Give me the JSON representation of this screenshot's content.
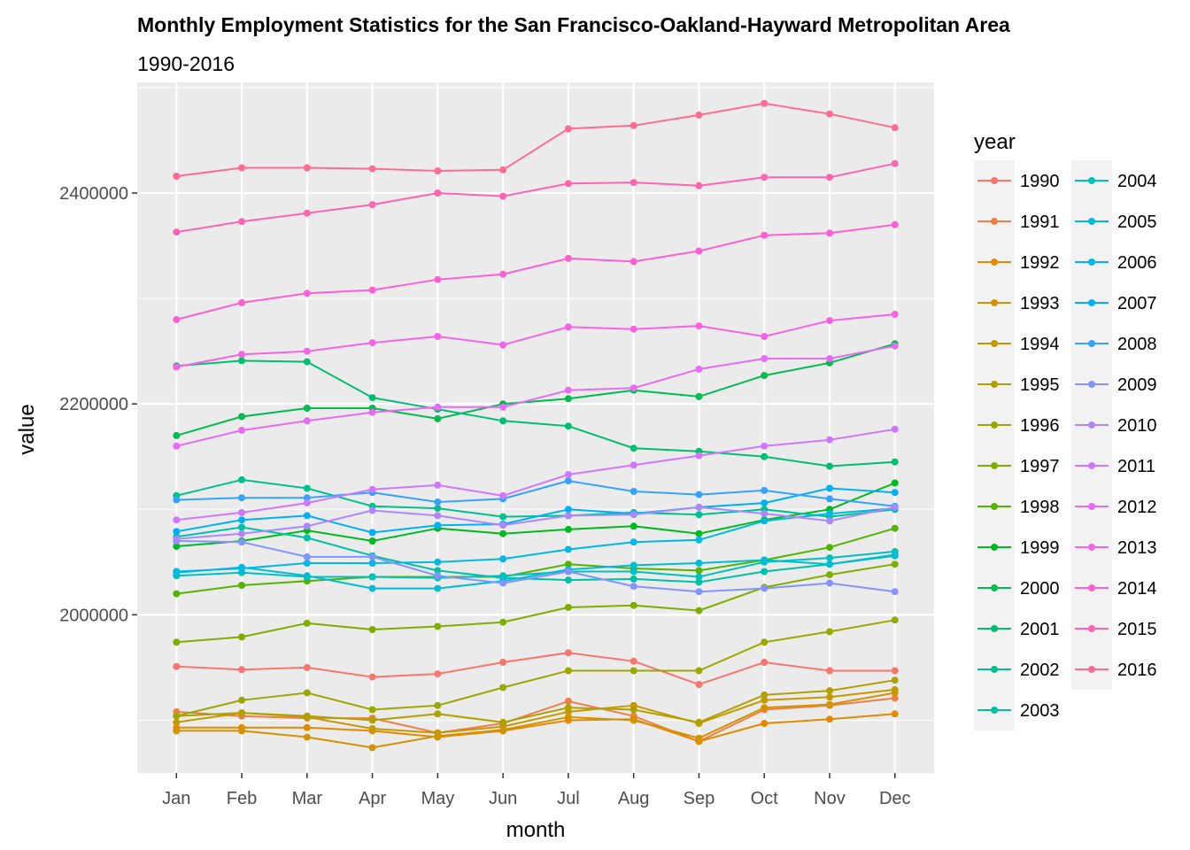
{
  "chart_data": {
    "type": "line",
    "title": "Monthly Employment Statistics for the San Francisco-Oakland-Hayward Metropolitan Area",
    "subtitle": "1990-2016",
    "xlabel": "month",
    "ylabel": "value",
    "legend_title": "year",
    "legend_position": "right",
    "grid": true,
    "categories": [
      "Jan",
      "Feb",
      "Mar",
      "Apr",
      "May",
      "Jun",
      "Jul",
      "Aug",
      "Sep",
      "Oct",
      "Nov",
      "Dec"
    ],
    "ylim": [
      1850000,
      2505000
    ],
    "yticks": [
      2000000,
      2200000,
      2400000
    ],
    "ytick_labels": [
      "2000000",
      "2200000",
      "2400000"
    ],
    "series": [
      {
        "name": "1990",
        "color": "#F8766D",
        "values": [
          1951000,
          1948000,
          1950000,
          1941000,
          1944000,
          1955000,
          1964000,
          1956000,
          1934000,
          1955000,
          1947000,
          1947000
        ]
      },
      {
        "name": "1991",
        "color": "#EF7F49",
        "values": [
          1908000,
          1904000,
          1902000,
          1902000,
          1888000,
          1897000,
          1918000,
          1904000,
          1880000,
          1910000,
          1914000,
          1921000
        ]
      },
      {
        "name": "1992",
        "color": "#E38900",
        "values": [
          1893000,
          1893000,
          1893000,
          1890000,
          1884000,
          1890000,
          1900000,
          1901000,
          1880000,
          1897000,
          1901000,
          1906000
        ]
      },
      {
        "name": "1993",
        "color": "#D39200",
        "values": [
          1890000,
          1890000,
          1884000,
          1874000,
          1885000,
          1891000,
          1903000,
          1900000,
          1883000,
          1912000,
          1915000,
          1926000
        ]
      },
      {
        "name": "1994",
        "color": "#C49A00",
        "values": [
          1898000,
          1907000,
          1903000,
          1892000,
          1888000,
          1894000,
          1908000,
          1914000,
          1897000,
          1919000,
          1922000,
          1929000
        ]
      },
      {
        "name": "1995",
        "color": "#B0A100",
        "values": [
          1904000,
          1907000,
          1904000,
          1900000,
          1906000,
          1898000,
          1912000,
          1910000,
          1898000,
          1924000,
          1928000,
          1938000
        ]
      },
      {
        "name": "1996",
        "color": "#9AA800",
        "values": [
          1904000,
          1919000,
          1926000,
          1910000,
          1914000,
          1931000,
          1947000,
          1947000,
          1947000,
          1974000,
          1984000,
          1995000
        ]
      },
      {
        "name": "1997",
        "color": "#7DAE00",
        "values": [
          1974000,
          1979000,
          1992000,
          1986000,
          1989000,
          1993000,
          2007000,
          2009000,
          2004000,
          2026000,
          2038000,
          2048000
        ]
      },
      {
        "name": "1998",
        "color": "#53B400",
        "values": [
          2020000,
          2028000,
          2032000,
          2036000,
          2036000,
          2036000,
          2048000,
          2044000,
          2042000,
          2052000,
          2064000,
          2082000
        ]
      },
      {
        "name": "1999",
        "color": "#00B81F",
        "values": [
          2065000,
          2070000,
          2080000,
          2070000,
          2082000,
          2077000,
          2081000,
          2084000,
          2077000,
          2090000,
          2100000,
          2125000
        ]
      },
      {
        "name": "2000",
        "color": "#00BB4E",
        "values": [
          2170000,
          2188000,
          2196000,
          2196000,
          2186000,
          2200000,
          2205000,
          2213000,
          2207000,
          2227000,
          2239000,
          2257000
        ]
      },
      {
        "name": "2001",
        "color": "#00BE70",
        "values": [
          2236000,
          2241000,
          2240000,
          2206000,
          2195000,
          2184000,
          2179000,
          2158000,
          2155000,
          2150000,
          2141000,
          2145000
        ]
      },
      {
        "name": "2002",
        "color": "#00C08D",
        "values": [
          2113000,
          2128000,
          2120000,
          2103000,
          2101000,
          2093000,
          2094000,
          2097000,
          2095000,
          2100000,
          2093000,
          2100000
        ]
      },
      {
        "name": "2003",
        "color": "#00C1A7",
        "values": [
          2074000,
          2083000,
          2073000,
          2056000,
          2042000,
          2035000,
          2033000,
          2034000,
          2031000,
          2041000,
          2048000,
          2056000
        ]
      },
      {
        "name": "2004",
        "color": "#00C0BE",
        "values": [
          2037000,
          2040000,
          2036000,
          2036000,
          2035000,
          2037000,
          2041000,
          2041000,
          2036000,
          2050000,
          2054000,
          2060000
        ]
      },
      {
        "name": "2005",
        "color": "#00BDD3",
        "values": [
          2040000,
          2045000,
          2037000,
          2025000,
          2025000,
          2032000,
          2043000,
          2047000,
          2049000,
          2052000,
          2048000,
          2057000
        ]
      },
      {
        "name": "2006",
        "color": "#00B8E5",
        "values": [
          2041000,
          2044000,
          2049000,
          2049000,
          2050000,
          2053000,
          2062000,
          2069000,
          2071000,
          2089000,
          2096000,
          2101000
        ]
      },
      {
        "name": "2007",
        "color": "#00B0F6",
        "values": [
          2079000,
          2090000,
          2094000,
          2078000,
          2085000,
          2086000,
          2100000,
          2096000,
          2102000,
          2106000,
          2120000,
          2116000
        ]
      },
      {
        "name": "2008",
        "color": "#35A2FF",
        "values": [
          2109000,
          2111000,
          2111000,
          2116000,
          2107000,
          2110000,
          2127000,
          2117000,
          2114000,
          2118000,
          2110000,
          2103000
        ]
      },
      {
        "name": "2009",
        "color": "#8494FF",
        "values": [
          2070000,
          2069000,
          2055000,
          2055000,
          2037000,
          2030000,
          2041000,
          2027000,
          2022000,
          2025000,
          2030000,
          2022000
        ]
      },
      {
        "name": "2010",
        "color": "#AE87FF",
        "values": [
          2072000,
          2077000,
          2084000,
          2099000,
          2094000,
          2085000,
          2094000,
          2095000,
          2102000,
          2096000,
          2089000,
          2102000
        ]
      },
      {
        "name": "2011",
        "color": "#CF78FF",
        "values": [
          2090000,
          2097000,
          2106000,
          2119000,
          2123000,
          2113000,
          2133000,
          2142000,
          2151000,
          2160000,
          2166000,
          2176000
        ]
      },
      {
        "name": "2012",
        "color": "#E76BF3",
        "values": [
          2160000,
          2175000,
          2184000,
          2192000,
          2197000,
          2197000,
          2213000,
          2215000,
          2233000,
          2243000,
          2243000,
          2255000
        ]
      },
      {
        "name": "2013",
        "color": "#F663E3",
        "values": [
          2235000,
          2247000,
          2250000,
          2258000,
          2264000,
          2256000,
          2273000,
          2271000,
          2274000,
          2264000,
          2279000,
          2285000
        ]
      },
      {
        "name": "2014",
        "color": "#FD61D1",
        "values": [
          2280000,
          2296000,
          2305000,
          2308000,
          2318000,
          2323000,
          2338000,
          2335000,
          2345000,
          2360000,
          2362000,
          2370000
        ]
      },
      {
        "name": "2015",
        "color": "#FF64B0",
        "values": [
          2363000,
          2373000,
          2381000,
          2389000,
          2400000,
          2397000,
          2409000,
          2410000,
          2407000,
          2415000,
          2415000,
          2428000
        ]
      },
      {
        "name": "2016",
        "color": "#FF6C91",
        "values": [
          2416000,
          2424000,
          2424000,
          2423000,
          2421000,
          2422000,
          2461000,
          2464000,
          2474000,
          2485000,
          2475000,
          2462000
        ]
      }
    ]
  }
}
